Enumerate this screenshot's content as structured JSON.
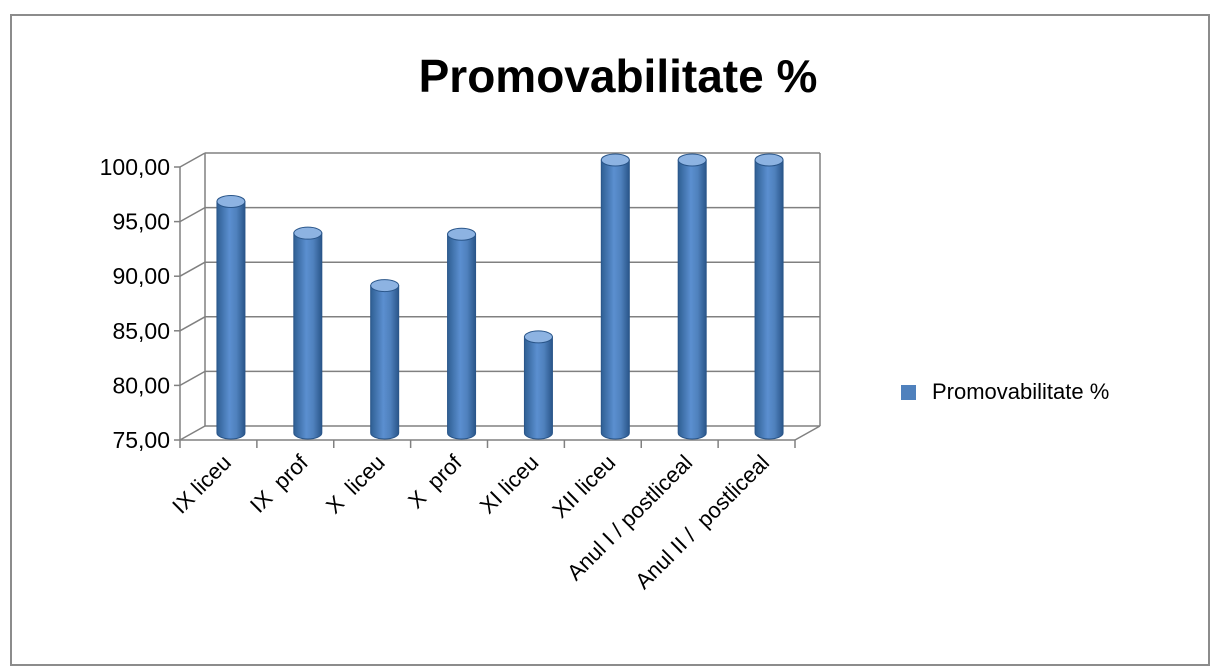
{
  "chart_data": {
    "type": "bar",
    "title": "Promovabilitate %",
    "xlabel": "",
    "ylabel": "",
    "categories": [
      "IX liceu",
      "IX  prof",
      "X  liceu",
      "X  prof",
      "XI liceu",
      "XII liceu",
      "Anul I / postliceal",
      "Anul II /  postliceal"
    ],
    "series": [
      {
        "name": "Promovabilitate %",
        "values": [
          96.2,
          93.3,
          88.5,
          93.2,
          83.8,
          100.0,
          100.0,
          100.0
        ]
      }
    ],
    "ylim": [
      75,
      100
    ],
    "yticks": [
      "75,00",
      "80,00",
      "85,00",
      "90,00",
      "95,00",
      "100,00"
    ],
    "grid": true,
    "legend_position": "right",
    "colors": {
      "bar": "#4f81bd",
      "bar_dark": "#2f5f93",
      "bar_light": "#8db3e2",
      "grid": "#808080"
    }
  }
}
